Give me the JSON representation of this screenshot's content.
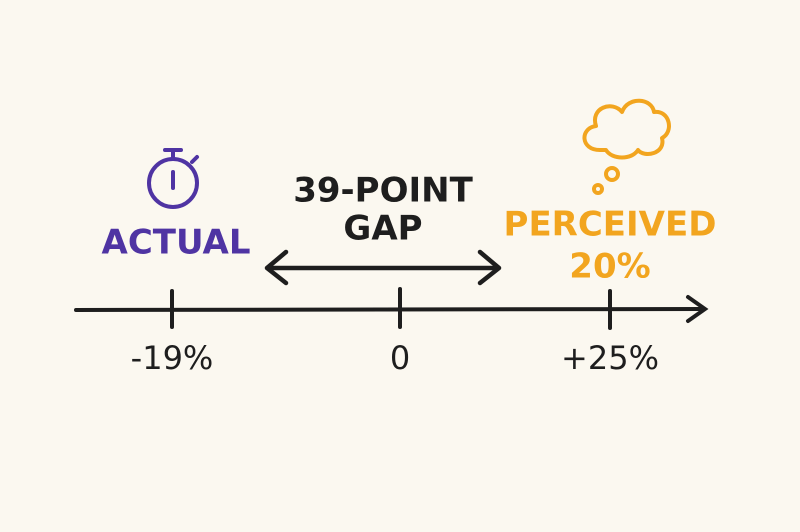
{
  "labels": {
    "actual": "ACTUAL",
    "gap": [
      "39-POINT",
      "GAP"
    ],
    "perceived": [
      "PERCEIVED",
      "20%"
    ]
  },
  "axis": {
    "ticks": [
      "-19%",
      "0",
      "+25%"
    ]
  }
}
